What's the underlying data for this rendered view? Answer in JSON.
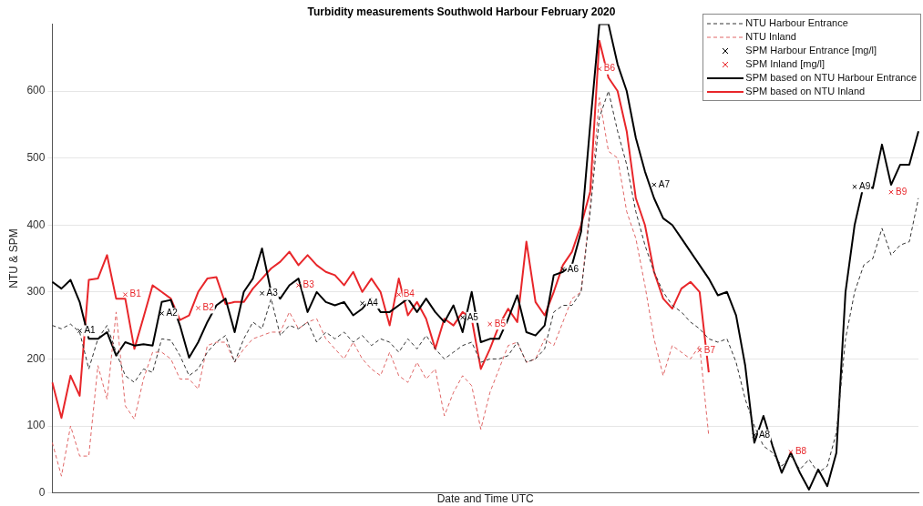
{
  "chart_data": {
    "type": "line",
    "title": "Turbidity measurements Southwold Harbour February 2020",
    "xlabel": "Date and Time UTC",
    "ylabel": "NTU & SPM",
    "categories": [
      null,
      null,
      null,
      null,
      null,
      null,
      null,
      null,
      null,
      null,
      null,
      null,
      null,
      null,
      null,
      null,
      null,
      null,
      null,
      null,
      null,
      null,
      null,
      null,
      null,
      null,
      null,
      null,
      null,
      null,
      null,
      null,
      null,
      null,
      null,
      null,
      null,
      null,
      null,
      null,
      null,
      null,
      null,
      null,
      null,
      null,
      null,
      null,
      null,
      null,
      null,
      null,
      null,
      null,
      null,
      null,
      null,
      null,
      null,
      null,
      null,
      null,
      null,
      null,
      null,
      null,
      null,
      null,
      null,
      null,
      null,
      null,
      null,
      null,
      null,
      null,
      null,
      null,
      null,
      null,
      null,
      null,
      null,
      null,
      null,
      null,
      null,
      null,
      null,
      null,
      null,
      null,
      null,
      null,
      null,
      null
    ],
    "ylim": [
      0,
      700
    ],
    "yticks": [
      0,
      100,
      200,
      300,
      400,
      500,
      600
    ],
    "grid": "y",
    "legend": "top right",
    "tick_labels": "y",
    "series": [
      {
        "name": "NTU Harbour Entrance",
        "color": "#333333",
        "line_style": "dashed",
        "marker": "none",
        "values": [
          250,
          245,
          252,
          240,
          185,
          230,
          250,
          210,
          175,
          165,
          185,
          180,
          230,
          228,
          205,
          175,
          185,
          210,
          225,
          235,
          195,
          230,
          255,
          245,
          290,
          235,
          250,
          245,
          255,
          225,
          240,
          230,
          240,
          225,
          235,
          220,
          230,
          225,
          210,
          230,
          215,
          235,
          215,
          200,
          210,
          220,
          225,
          195,
          200,
          200,
          205,
          225,
          195,
          200,
          215,
          270,
          280,
          280,
          300,
          420,
          560,
          600,
          540,
          490,
          420,
          370,
          330,
          300,
          280,
          270,
          255,
          245,
          230,
          225,
          230,
          195,
          140,
          100,
          70,
          60,
          40,
          55,
          35,
          50,
          30,
          40,
          90,
          230,
          300,
          340,
          350,
          395,
          355,
          370,
          375,
          440
        ]
      },
      {
        "name": "NTU Inland",
        "color": "#e06666",
        "line_style": "dashed",
        "marker": "none",
        "values": [
          75,
          25,
          100,
          55,
          55,
          190,
          140,
          270,
          130,
          110,
          170,
          210,
          210,
          200,
          170,
          170,
          155,
          220,
          225,
          225,
          195,
          215,
          230,
          235,
          240,
          240,
          270,
          245,
          255,
          260,
          230,
          215,
          200,
          225,
          200,
          185,
          175,
          210,
          175,
          165,
          195,
          170,
          185,
          115,
          150,
          175,
          160,
          95,
          150,
          185,
          220,
          225,
          195,
          200,
          230,
          220,
          255,
          290,
          300,
          430,
          590,
          510,
          500,
          420,
          380,
          310,
          230,
          175,
          220,
          210,
          200,
          220,
          85,
          null,
          null,
          null,
          null,
          null,
          null,
          null,
          null,
          null,
          null,
          null,
          null,
          null,
          null,
          null,
          null,
          null,
          null,
          null,
          null,
          null,
          null,
          null
        ]
      },
      {
        "name": "SPM Harbour Entrance [mg/l]",
        "type": "scatter",
        "color": "#000000",
        "marker": "cross",
        "values": [
          null,
          null,
          null,
          242,
          null,
          null,
          null,
          null,
          null,
          null,
          null,
          null,
          268,
          null,
          null,
          null,
          null,
          null,
          null,
          null,
          null,
          null,
          null,
          298,
          null,
          null,
          null,
          null,
          null,
          null,
          null,
          null,
          null,
          null,
          283,
          null,
          null,
          null,
          null,
          null,
          null,
          null,
          null,
          null,
          null,
          262,
          null,
          null,
          null,
          null,
          null,
          null,
          null,
          null,
          null,
          null,
          334,
          null,
          null,
          null,
          null,
          null,
          null,
          null,
          null,
          null,
          460,
          null,
          null,
          null,
          null,
          null,
          null,
          null,
          null,
          null,
          null,
          86,
          null,
          null,
          null,
          null,
          null,
          null,
          null,
          null,
          null,
          null,
          457,
          null,
          null,
          null,
          null,
          null,
          null,
          null
        ],
        "value_labels": [
          null,
          null,
          null,
          "A1",
          null,
          null,
          null,
          null,
          null,
          null,
          null,
          null,
          "A2",
          null,
          null,
          null,
          null,
          null,
          null,
          null,
          null,
          null,
          null,
          "A3",
          null,
          null,
          null,
          null,
          null,
          null,
          null,
          null,
          null,
          null,
          "A4",
          null,
          null,
          null,
          null,
          null,
          null,
          null,
          null,
          null,
          null,
          "A5",
          null,
          null,
          null,
          null,
          null,
          null,
          null,
          null,
          null,
          null,
          "A6",
          null,
          null,
          null,
          null,
          null,
          null,
          null,
          null,
          null,
          "A7",
          null,
          null,
          null,
          null,
          null,
          null,
          null,
          null,
          null,
          null,
          "A8",
          null,
          null,
          null,
          null,
          null,
          null,
          null,
          null,
          null,
          null,
          "A9",
          null,
          null,
          null,
          null,
          null,
          null,
          null
        ]
      },
      {
        "name": "SPM Inland [mg/l]",
        "type": "scatter",
        "color": "#e8262a",
        "marker": "cross",
        "values": [
          null,
          null,
          null,
          null,
          null,
          null,
          null,
          null,
          296,
          null,
          null,
          null,
          null,
          null,
          null,
          null,
          276,
          null,
          null,
          null,
          null,
          null,
          null,
          null,
          null,
          null,
          null,
          310,
          null,
          null,
          null,
          null,
          null,
          null,
          null,
          null,
          null,
          null,
          296,
          null,
          null,
          null,
          null,
          null,
          null,
          null,
          null,
          null,
          252,
          null,
          null,
          null,
          null,
          null,
          null,
          null,
          null,
          null,
          null,
          null,
          633,
          null,
          null,
          null,
          null,
          null,
          null,
          null,
          null,
          null,
          null,
          213,
          null,
          null,
          null,
          null,
          null,
          null,
          null,
          null,
          null,
          61,
          null,
          null,
          null,
          null,
          null,
          null,
          null,
          null,
          null,
          null,
          449,
          null,
          null,
          null
        ],
        "value_labels": [
          null,
          null,
          null,
          null,
          null,
          null,
          null,
          null,
          "B1",
          null,
          null,
          null,
          null,
          null,
          null,
          null,
          "B2",
          null,
          null,
          null,
          null,
          null,
          null,
          null,
          null,
          null,
          null,
          "B3",
          null,
          null,
          null,
          null,
          null,
          null,
          null,
          null,
          null,
          null,
          "B4",
          null,
          null,
          null,
          null,
          null,
          null,
          null,
          null,
          null,
          "B5",
          null,
          null,
          null,
          null,
          null,
          null,
          null,
          null,
          null,
          null,
          null,
          "B6",
          null,
          null,
          null,
          null,
          null,
          null,
          null,
          null,
          null,
          null,
          "B7",
          null,
          null,
          null,
          null,
          null,
          null,
          null,
          null,
          null,
          "B8",
          null,
          null,
          null,
          null,
          null,
          null,
          null,
          null,
          null,
          null,
          "B9",
          null,
          null,
          null
        ]
      },
      {
        "name": "SPM based on NTU Harbour Entrance",
        "color": "#000000",
        "line_style": "solid",
        "marker": "none",
        "values": [
          315,
          305,
          318,
          285,
          230,
          230,
          240,
          205,
          225,
          220,
          222,
          220,
          285,
          288,
          250,
          202,
          225,
          255,
          280,
          290,
          240,
          300,
          320,
          365,
          300,
          290,
          310,
          320,
          270,
          300,
          285,
          280,
          285,
          265,
          275,
          290,
          270,
          270,
          280,
          290,
          270,
          290,
          270,
          255,
          280,
          240,
          300,
          225,
          230,
          230,
          260,
          295,
          240,
          235,
          250,
          325,
          330,
          340,
          390,
          550,
          700,
          700,
          640,
          600,
          530,
          480,
          440,
          410,
          400,
          380,
          360,
          340,
          320,
          295,
          300,
          265,
          190,
          75,
          115,
          70,
          30,
          60,
          30,
          5,
          35,
          10,
          60,
          300,
          400,
          460,
          455,
          520,
          460,
          490,
          490,
          540
        ]
      },
      {
        "name": "SPM based on NTU Inland",
        "color": "#e8262a",
        "line_style": "solid",
        "marker": "none",
        "values": [
          165,
          112,
          175,
          145,
          318,
          320,
          355,
          290,
          290,
          215,
          262,
          310,
          300,
          290,
          258,
          265,
          300,
          320,
          322,
          282,
          285,
          285,
          305,
          320,
          335,
          345,
          360,
          340,
          355,
          340,
          330,
          325,
          310,
          330,
          300,
          320,
          300,
          250,
          320,
          265,
          285,
          260,
          215,
          260,
          250,
          270,
          260,
          185,
          215,
          250,
          275,
          255,
          375,
          285,
          265,
          300,
          340,
          360,
          400,
          450,
          675,
          620,
          600,
          540,
          440,
          400,
          330,
          290,
          275,
          305,
          315,
          300,
          180,
          null,
          null,
          null,
          null,
          null,
          null,
          null,
          null,
          null,
          null,
          null,
          null,
          null,
          null,
          null,
          null,
          null,
          null,
          null,
          null,
          null,
          null,
          null
        ]
      }
    ]
  }
}
